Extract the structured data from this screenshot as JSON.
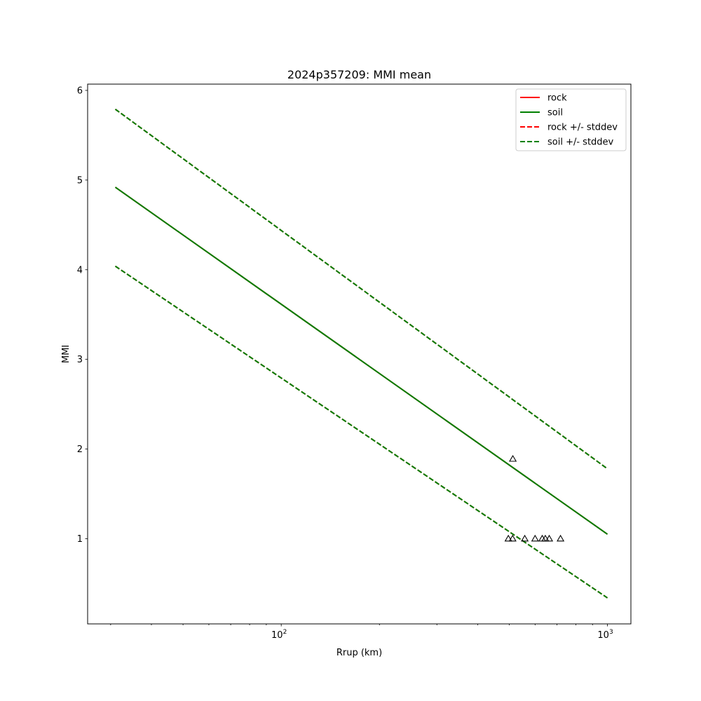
{
  "chart_data": {
    "type": "line",
    "title": "2024p357209: MMI mean",
    "xlabel": "Rrup (km)",
    "ylabel": "MMI",
    "xscale": "log",
    "xlim": [
      25.5,
      1180
    ],
    "ylim": [
      0.05,
      6.07
    ],
    "x_ticks": [
      {
        "value": 100,
        "base": "10",
        "exp": "2"
      },
      {
        "value": 1000,
        "base": "10",
        "exp": "3"
      }
    ],
    "y_ticks": [
      1,
      2,
      3,
      4,
      5,
      6
    ],
    "grid": false,
    "legend_position": "top-right",
    "series": [
      {
        "name": "rock",
        "style": "solid",
        "color": "#ff0000",
        "x": [
          31,
          1000
        ],
        "y": [
          4.92,
          1.05
        ]
      },
      {
        "name": "soil",
        "style": "solid",
        "color": "#008000",
        "x": [
          31,
          1000
        ],
        "y": [
          4.92,
          1.05
        ]
      },
      {
        "name": "rock +/- stddev",
        "style": "dashed",
        "color": "#ff0000",
        "x": [
          31,
          1000
        ],
        "y": [
          5.79,
          1.78
        ],
        "y_lower": [
          4.04,
          0.34
        ]
      },
      {
        "name": "soil +/- stddev",
        "style": "dashed",
        "color": "#008000",
        "x": [
          31,
          1000
        ],
        "y": [
          5.79,
          1.78
        ],
        "y_lower": [
          4.04,
          0.34
        ]
      }
    ],
    "observations": {
      "marker": "triangle",
      "points": [
        {
          "x": 513,
          "y": 1.89
        },
        {
          "x": 497,
          "y": 1.0
        },
        {
          "x": 512,
          "y": 1.0
        },
        {
          "x": 558,
          "y": 1.0
        },
        {
          "x": 600,
          "y": 1.0
        },
        {
          "x": 631,
          "y": 1.0
        },
        {
          "x": 645,
          "y": 1.0
        },
        {
          "x": 663,
          "y": 1.0
        },
        {
          "x": 718,
          "y": 1.0
        }
      ]
    }
  }
}
